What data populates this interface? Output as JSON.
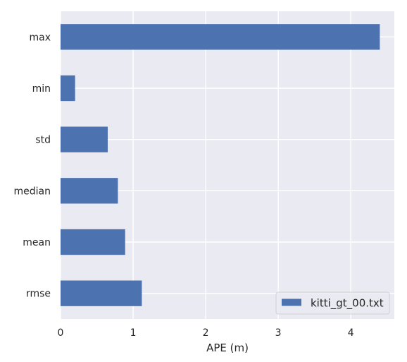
{
  "chart_data": {
    "type": "bar",
    "orientation": "horizontal",
    "categories": [
      "rmse",
      "mean",
      "median",
      "std",
      "min",
      "max"
    ],
    "series": [
      {
        "name": "kitti_gt_00.txt",
        "values": [
          1.12,
          0.89,
          0.79,
          0.65,
          0.2,
          4.4
        ],
        "color": "#4c72b0"
      }
    ],
    "xlabel": "APE (m)",
    "ylabel": "",
    "xlim": [
      0,
      4.6
    ],
    "xticks": [
      0,
      1,
      2,
      3,
      4
    ],
    "grid": true,
    "legend_position": "lower-right",
    "background_color": "#eaeaf2",
    "grid_color": "#ffffff"
  }
}
